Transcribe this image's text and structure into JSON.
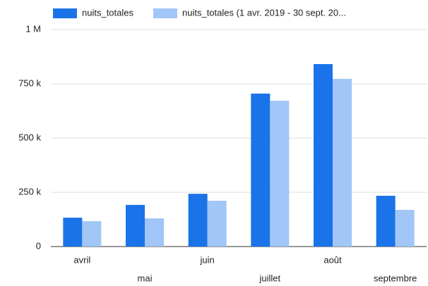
{
  "chart_data": {
    "type": "bar",
    "categories": [
      "avril",
      "mai",
      "juin",
      "juillet",
      "août",
      "septembre"
    ],
    "series": [
      {
        "name": "nuits_totales",
        "color": "#1a73e8",
        "values": [
          133000,
          192000,
          243000,
          705000,
          841000,
          234000
        ]
      },
      {
        "name": "nuits_totales (1 avr. 2019 - 30 sept. 20...",
        "color": "#a1c6f7",
        "values": [
          117000,
          130000,
          211000,
          672000,
          773000,
          169000
        ]
      }
    ],
    "ylim": [
      0,
      1000000
    ],
    "yticks": [
      0,
      {
        "value": 250000,
        "label": "250 k"
      },
      {
        "value": 500000,
        "label": "500 k"
      },
      {
        "value": 750000,
        "label": "750 k"
      },
      {
        "value": 1000000,
        "label": "1 M"
      }
    ],
    "grid": true,
    "legend": "top"
  }
}
